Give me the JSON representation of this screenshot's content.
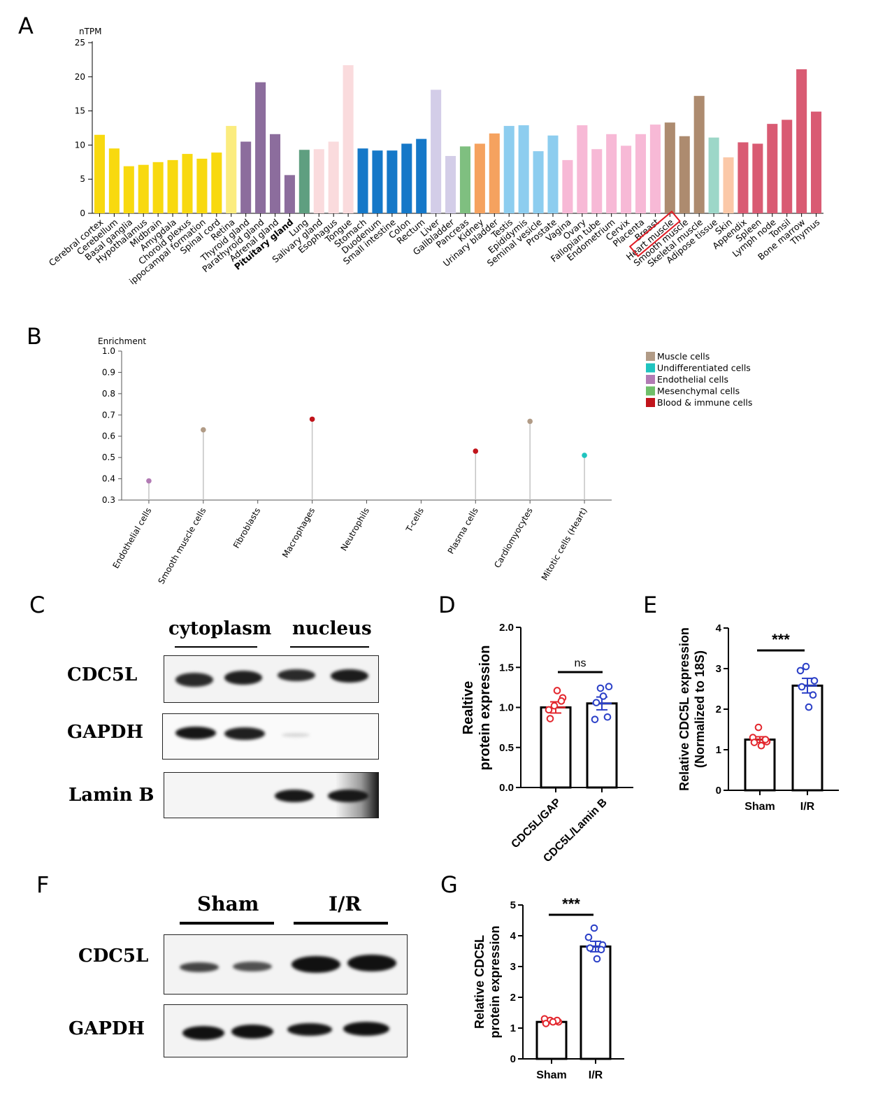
{
  "panels": {
    "a": "A",
    "b": "B",
    "c": "C",
    "d": "D",
    "e": "E",
    "f": "F",
    "g": "G"
  },
  "chart_data": [
    {
      "id": "A",
      "type": "bar",
      "ylabel": "nTPM",
      "ylim": [
        0,
        25
      ],
      "yticks": [
        0,
        5,
        10,
        15,
        20,
        25
      ],
      "categories": [
        "Cerebral cortex",
        "Cerebellum",
        "Basal ganglia",
        "Hypothalamus",
        "Midbrain",
        "Amygdala",
        "Choroid plexus",
        "ippocampal formation",
        "Spinal cord",
        "Retina",
        "Thyroid gland",
        "Parathyroid gland",
        "Adrenal gland",
        "Pituitary gland",
        "Lung",
        "Salivary gland",
        "Esophagus",
        "Tongue",
        "Stomach",
        "Duodenum",
        "Small intestine",
        "Colon",
        "Rectum",
        "Liver",
        "Gallbladder",
        "Pancreas",
        "Kidney",
        "Urinary bladder",
        "Testis",
        "Epididymis",
        "Seminal vesicle",
        "Prostate",
        "Vagina",
        "Ovary",
        "Fallopian tube",
        "Endometrium",
        "Cervix",
        "Placenta",
        "Breast",
        "Heart muscle",
        "Smooth muscle",
        "Skeletal muscle",
        "Adipose tissue",
        "Skin",
        "Appendix",
        "Spleen",
        "Lymph node",
        "Tonsil",
        "Bone marrow",
        "Thymus"
      ],
      "values": [
        11.5,
        9.5,
        6.9,
        7.1,
        7.5,
        7.8,
        8.7,
        8.0,
        8.9,
        12.8,
        10.5,
        19.2,
        11.6,
        5.6,
        9.3,
        9.4,
        10.5,
        21.7,
        9.5,
        9.2,
        9.2,
        10.2,
        10.9,
        18.1,
        8.4,
        9.8,
        10.2,
        11.7,
        12.8,
        12.9,
        9.1,
        11.4,
        7.8,
        12.9,
        9.4,
        11.6,
        9.9,
        11.6,
        13.0,
        13.3,
        11.3,
        17.2,
        11.1,
        8.2,
        10.4,
        10.2,
        13.1,
        13.7,
        21.1,
        14.9
      ],
      "colors": [
        "#f8d90f",
        "#f8d90f",
        "#f8d90f",
        "#f8d90f",
        "#f8d90f",
        "#f8d90f",
        "#f8d90f",
        "#f8d90f",
        "#f8d90f",
        "#fbec7e",
        "#8c6d9d",
        "#8c6d9d",
        "#8c6d9d",
        "#8c6d9d",
        "#5f9f80",
        "#fadbdd",
        "#fadbdd",
        "#fadbdd",
        "#1578c8",
        "#1578c8",
        "#1578c8",
        "#1578c8",
        "#1578c8",
        "#d3cde8",
        "#d3cde8",
        "#7fbf80",
        "#f5a25f",
        "#f5a25f",
        "#8dcdef",
        "#8dcdef",
        "#8dcdef",
        "#8dcdef",
        "#f7b9d6",
        "#f7b9d6",
        "#f7b9d6",
        "#f7b9d6",
        "#f7b9d6",
        "#f7b9d6",
        "#f7b9d6",
        "#ad8b6f",
        "#ad8b6f",
        "#ad8b6f",
        "#9dd7c8",
        "#fbc8a8",
        "#d95b73",
        "#d95b73",
        "#d95b73",
        "#d95b73",
        "#d95b73",
        "#d95b73"
      ],
      "bold_category": "Pituitary gland",
      "highlighted_category": "Heart muscle",
      "highlight_color": "#e01b24"
    },
    {
      "id": "B",
      "type": "scatter",
      "ylabel": "Enrichment",
      "ylim": [
        0.3,
        1.0
      ],
      "yticks": [
        0.3,
        0.4,
        0.5,
        0.6,
        0.7,
        0.8,
        0.9,
        1.0
      ],
      "categories": [
        "Endothelial cells",
        "Smooth muscle cells",
        "Fibroblasts",
        "Macrophages",
        "Neutrophils",
        "T-cells",
        "Plasma cells",
        "Cardiomyocytes",
        "Mitotic cells (Heart)"
      ],
      "points": [
        {
          "category": "Endothelial cells",
          "value": 0.39,
          "group": 2
        },
        {
          "category": "Smooth muscle cells",
          "value": 0.63,
          "group": 0
        },
        {
          "category": "Macrophages",
          "value": 0.68,
          "group": 4
        },
        {
          "category": "Plasma cells",
          "value": 0.53,
          "group": 4
        },
        {
          "category": "Cardiomyocytes",
          "value": 0.67,
          "group": 0
        },
        {
          "category": "Mitotic cells (Heart)",
          "value": 0.51,
          "group": 1
        }
      ],
      "legend": [
        {
          "name": "Muscle cells",
          "color": "#b19b86"
        },
        {
          "name": "Undifferentiated cells",
          "color": "#1fc4bf"
        },
        {
          "name": "Endothelial cells",
          "color": "#b27bb4"
        },
        {
          "name": "Mesenchymal cells",
          "color": "#6fbf6a"
        },
        {
          "name": "Blood & immune cells",
          "color": "#c1141b"
        }
      ],
      "legend_position": "top-right"
    },
    {
      "id": "D",
      "type": "bar",
      "ylabel": "Realtive protein expression",
      "ylim": [
        0,
        2.0
      ],
      "yticks": [
        0.0,
        0.5,
        1.0,
        1.5,
        2.0
      ],
      "categories": [
        "CDC5L/GAP",
        "CDC5L/Lamin B"
      ],
      "values": [
        1.0,
        1.05
      ],
      "errors": [
        0.07,
        0.08
      ],
      "points": [
        [
          1.02,
          0.97,
          1.12,
          0.86,
          1.08,
          1.21
        ],
        [
          1.24,
          0.85,
          1.26,
          1.06,
          0.88,
          1.14
        ]
      ],
      "point_colors": [
        "#e3262d",
        "#2a3fc7"
      ],
      "significance": "ns"
    },
    {
      "id": "E",
      "type": "bar",
      "ylabel": "Relative CDC5L expression",
      "ylabel2": "(Normalized to 18S)",
      "ylim": [
        0,
        4
      ],
      "yticks": [
        0,
        1,
        2,
        3,
        4
      ],
      "categories": [
        "Sham",
        "I/R"
      ],
      "values": [
        1.25,
        2.58
      ],
      "errors": [
        0.07,
        0.18
      ],
      "points": [
        [
          1.55,
          1.3,
          1.2,
          1.18,
          1.25,
          1.1
        ],
        [
          3.05,
          2.95,
          2.7,
          2.55,
          2.35,
          2.05
        ]
      ],
      "point_colors": [
        "#e3262d",
        "#2a3fc7"
      ],
      "significance": "***"
    },
    {
      "id": "G",
      "type": "bar",
      "ylabel": "Relative CDC5L",
      "ylabel2": "protein expression",
      "ylim": [
        0,
        5
      ],
      "yticks": [
        0,
        1,
        2,
        3,
        4,
        5
      ],
      "categories": [
        "Sham",
        "I/R"
      ],
      "values": [
        1.2,
        3.65
      ],
      "errors": [
        0.04,
        0.17
      ],
      "points": [
        [
          1.25,
          1.3,
          1.2,
          1.15,
          1.25,
          1.2
        ],
        [
          4.25,
          3.95,
          3.7,
          3.6,
          3.55,
          3.25
        ]
      ],
      "point_colors": [
        "#e3262d",
        "#2a3fc7"
      ],
      "significance": "***"
    }
  ],
  "blot_c": {
    "headers": [
      "cytoplasm",
      "nucleus"
    ],
    "rows": [
      "CDC5L",
      "GAPDH",
      "Lamin B"
    ]
  },
  "blot_f": {
    "headers": [
      "Sham",
      "I/R"
    ],
    "rows": [
      "CDC5L",
      "GAPDH"
    ]
  }
}
